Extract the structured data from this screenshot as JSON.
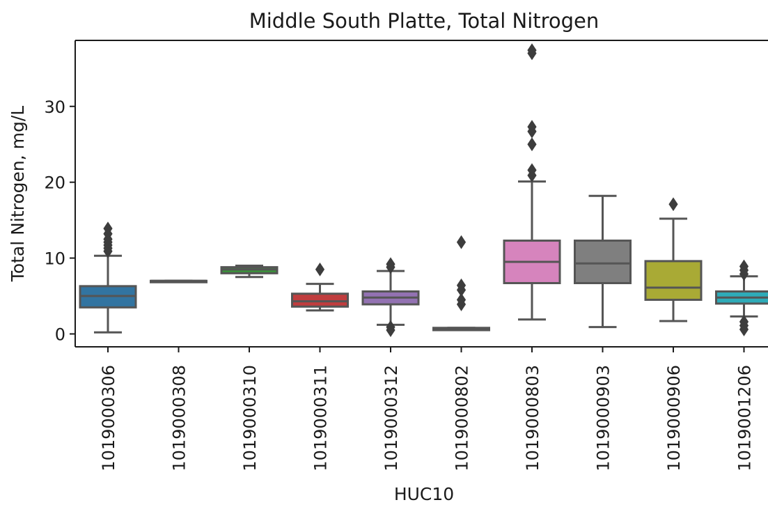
{
  "chart_data": {
    "type": "box",
    "title": "Middle South Platte, Total Nitrogen",
    "xlabel": "HUC10",
    "ylabel": "Total Nitrogen, mg/L",
    "ylim": [
      -1.7,
      38.7
    ],
    "yticks": [
      0,
      10,
      20,
      30
    ],
    "grid": false,
    "categories": [
      "1019000306",
      "1019000308",
      "1019000310",
      "1019000311",
      "1019000312",
      "1019000802",
      "1019000803",
      "1019000903",
      "1019000906",
      "1019001206"
    ],
    "colors": [
      "#3274a1",
      "#3a923a",
      "#3a923a",
      "#c03d3e",
      "#9372b2",
      "#845b53",
      "#d684bd",
      "#7f7f7f",
      "#a9aa35",
      "#2eabb8"
    ],
    "boxes": [
      {
        "q1": 3.5,
        "median": 5.0,
        "q3": 6.3,
        "whisker_low": 0.2,
        "whisker_high": 10.3,
        "outliers": [
          10.9,
          11.3,
          11.7,
          12.1,
          12.5,
          13.2,
          13.9
        ]
      },
      {
        "q1": 7.0,
        "median": 7.0,
        "q3": 7.0,
        "whisker_low": 7.0,
        "whisker_high": 7.0,
        "outliers": []
      },
      {
        "q1": 8.0,
        "median": 8.5,
        "q3": 8.8,
        "whisker_low": 7.5,
        "whisker_high": 9.0,
        "outliers": []
      },
      {
        "q1": 3.6,
        "median": 4.3,
        "q3": 5.3,
        "whisker_low": 3.1,
        "whisker_high": 6.6,
        "outliers": [
          8.5
        ]
      },
      {
        "q1": 3.9,
        "median": 4.8,
        "q3": 5.6,
        "whisker_low": 1.2,
        "whisker_high": 8.3,
        "outliers": [
          0.5,
          0.9,
          8.8,
          9.2
        ]
      },
      {
        "q1": 0.5,
        "median": 0.6,
        "q3": 0.8,
        "whisker_low": 0.5,
        "whisker_high": 0.8,
        "outliers": [
          3.9,
          4.5,
          5.8,
          6.4,
          12.1
        ]
      },
      {
        "q1": 6.7,
        "median": 9.5,
        "q3": 12.3,
        "whisker_low": 1.9,
        "whisker_high": 20.1,
        "outliers": [
          20.9,
          21.6,
          25.0,
          26.7,
          27.3,
          37.0,
          37.4
        ]
      },
      {
        "q1": 6.7,
        "median": 9.3,
        "q3": 12.3,
        "whisker_low": 0.9,
        "whisker_high": 18.2,
        "outliers": []
      },
      {
        "q1": 4.5,
        "median": 6.1,
        "q3": 9.6,
        "whisker_low": 1.7,
        "whisker_high": 15.2,
        "outliers": [
          17.1
        ]
      },
      {
        "q1": 4.0,
        "median": 4.8,
        "q3": 5.6,
        "whisker_low": 2.3,
        "whisker_high": 7.6,
        "outliers": [
          0.6,
          1.1,
          1.6,
          7.9,
          8.4,
          8.9
        ]
      }
    ]
  }
}
